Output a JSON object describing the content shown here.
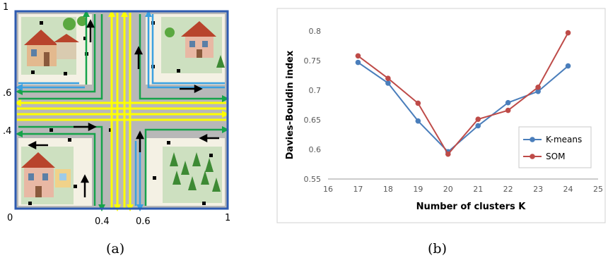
{
  "panel_a": {
    "caption": "(a)",
    "axis_labels": {
      "x0": "0",
      "y0": "0",
      "y1": "1",
      "x04": "0.4",
      "x06": "0.6",
      "x1": "1",
      "y06": ".6",
      "y04": ".4"
    },
    "colors": {
      "road": "#b8b8b8",
      "grass": "#cde0c0",
      "yellow": "#ffff00",
      "green": "#16a34a",
      "blue": "#3ba0e0",
      "border": "#2e5bb0"
    }
  },
  "panel_b": {
    "caption": "(b)"
  },
  "chart_data": {
    "type": "line",
    "title": "",
    "xlabel": "Number of clusters K",
    "ylabel": "Davies-Bouldin index",
    "xlim": [
      16,
      25
    ],
    "ylim": [
      0.55,
      0.8
    ],
    "xticks": [
      "16",
      "17",
      "18",
      "19",
      "20",
      "21",
      "22",
      "23",
      "24",
      "25"
    ],
    "yticks": [
      "0.55",
      "0.6",
      "0.65",
      "0.7",
      "0.75",
      "0.8"
    ],
    "x": [
      17,
      18,
      19,
      20,
      21,
      22,
      23,
      24
    ],
    "series": [
      {
        "name": "K-means",
        "color": "#4a7ebb",
        "values": [
          0.747,
          0.712,
          0.648,
          0.596,
          0.64,
          0.679,
          0.698,
          0.741
        ]
      },
      {
        "name": "SOM",
        "color": "#be4b48",
        "values": [
          0.758,
          0.72,
          0.678,
          0.592,
          0.651,
          0.666,
          0.705,
          0.797
        ]
      }
    ],
    "grid": false,
    "legend": "right"
  }
}
